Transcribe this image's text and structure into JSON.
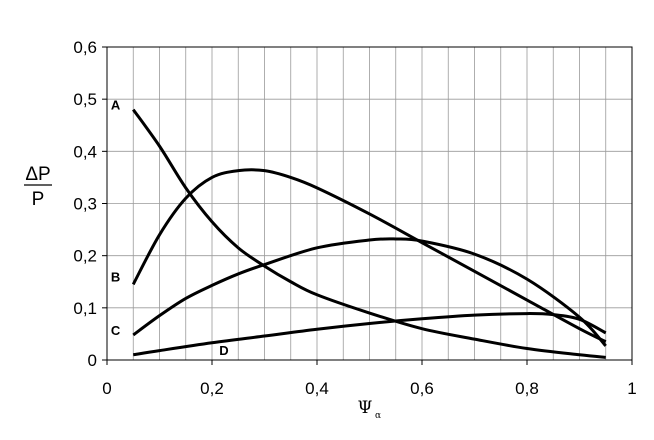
{
  "chart_data": {
    "type": "line",
    "title": "",
    "xlabel": "Ψ",
    "xlabel_subscript": "α",
    "ylabel_numerator": "ΔP",
    "ylabel_denominator": "P",
    "xlim": [
      0,
      1
    ],
    "ylim": [
      0,
      0.6
    ],
    "x_ticks": [
      0,
      0.2,
      0.4,
      0.6,
      0.8,
      1
    ],
    "x_tick_labels": [
      "0",
      "0,2",
      "0,4",
      "0,6",
      "0,8",
      "1"
    ],
    "y_ticks": [
      0,
      0.1,
      0.2,
      0.3,
      0.4,
      0.5,
      0.6
    ],
    "y_tick_labels": [
      "0",
      "0,1",
      "0,2",
      "0,3",
      "0,4",
      "0,5",
      "0,6"
    ],
    "grid": true,
    "legend": "none",
    "line_color": "#000000",
    "grid_color": "#9a9a9a",
    "series": [
      {
        "name": "A",
        "x": [
          0.05,
          0.1,
          0.15,
          0.2,
          0.25,
          0.3,
          0.35,
          0.4,
          0.5,
          0.6,
          0.7,
          0.8,
          0.9,
          0.95
        ],
        "y": [
          0.48,
          0.41,
          0.33,
          0.265,
          0.215,
          0.18,
          0.15,
          0.125,
          0.09,
          0.06,
          0.04,
          0.022,
          0.01,
          0.005
        ]
      },
      {
        "name": "B",
        "x": [
          0.05,
          0.1,
          0.15,
          0.2,
          0.25,
          0.3,
          0.35,
          0.4,
          0.5,
          0.6,
          0.7,
          0.8,
          0.9,
          0.95
        ],
        "y": [
          0.145,
          0.24,
          0.31,
          0.35,
          0.363,
          0.363,
          0.35,
          0.33,
          0.28,
          0.225,
          0.17,
          0.115,
          0.06,
          0.035
        ]
      },
      {
        "name": "C",
        "x": [
          0.05,
          0.1,
          0.15,
          0.2,
          0.25,
          0.3,
          0.4,
          0.5,
          0.55,
          0.6,
          0.7,
          0.8,
          0.9,
          0.95
        ],
        "y": [
          0.048,
          0.085,
          0.118,
          0.143,
          0.165,
          0.183,
          0.215,
          0.23,
          0.232,
          0.228,
          0.203,
          0.155,
          0.082,
          0.027
        ]
      },
      {
        "name": "D",
        "x": [
          0.05,
          0.1,
          0.2,
          0.3,
          0.4,
          0.5,
          0.6,
          0.7,
          0.8,
          0.85,
          0.9,
          0.95
        ],
        "y": [
          0.01,
          0.018,
          0.033,
          0.046,
          0.059,
          0.07,
          0.079,
          0.086,
          0.089,
          0.087,
          0.078,
          0.052
        ]
      }
    ]
  }
}
